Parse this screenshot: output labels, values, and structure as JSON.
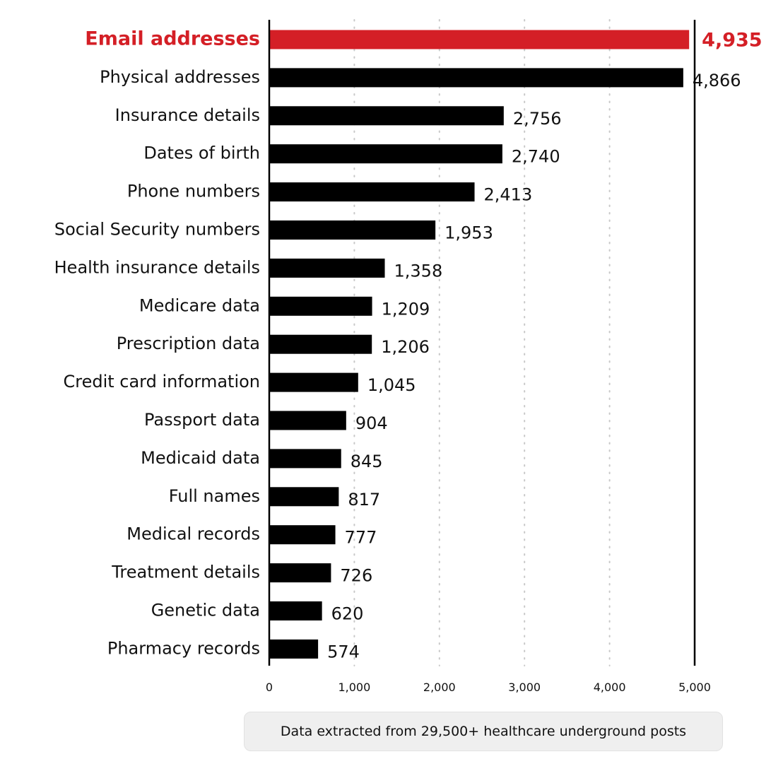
{
  "chart_data": {
    "type": "bar",
    "orientation": "horizontal",
    "categories": [
      "Email addresses",
      "Physical addresses",
      "Insurance details",
      "Dates of birth",
      "Phone numbers",
      "Social Security numbers",
      "Health insurance details",
      "Medicare data",
      "Prescription data",
      "Credit card information",
      "Passport data",
      "Medicaid data",
      "Full names",
      "Medical records",
      "Treatment details",
      "Genetic data",
      "Pharmacy records"
    ],
    "values": [
      4935,
      4866,
      2756,
      2740,
      2413,
      1953,
      1358,
      1209,
      1206,
      1045,
      904,
      845,
      817,
      777,
      726,
      620,
      574
    ],
    "value_labels": [
      "4,935",
      "4,866",
      "2,756",
      "2,740",
      "2,413",
      "1,953",
      "1,358",
      "1,209",
      "1,206",
      "1,045",
      "904",
      "845",
      "817",
      "777",
      "726",
      "620",
      "574"
    ],
    "highlight_index": 0,
    "xlim": [
      0,
      5000
    ],
    "xticks": [
      0,
      1000,
      2000,
      3000,
      4000,
      5000
    ],
    "xtick_labels": [
      "0",
      "1,000",
      "2,000",
      "3,000",
      "4,000",
      "5,000"
    ],
    "grid": "vertical dotted",
    "colors": {
      "bar": "#000000",
      "highlight": "#d41f26",
      "grid": "#c8c8c8"
    }
  },
  "footnote": "Data extracted from 29,500+ healthcare underground posts"
}
